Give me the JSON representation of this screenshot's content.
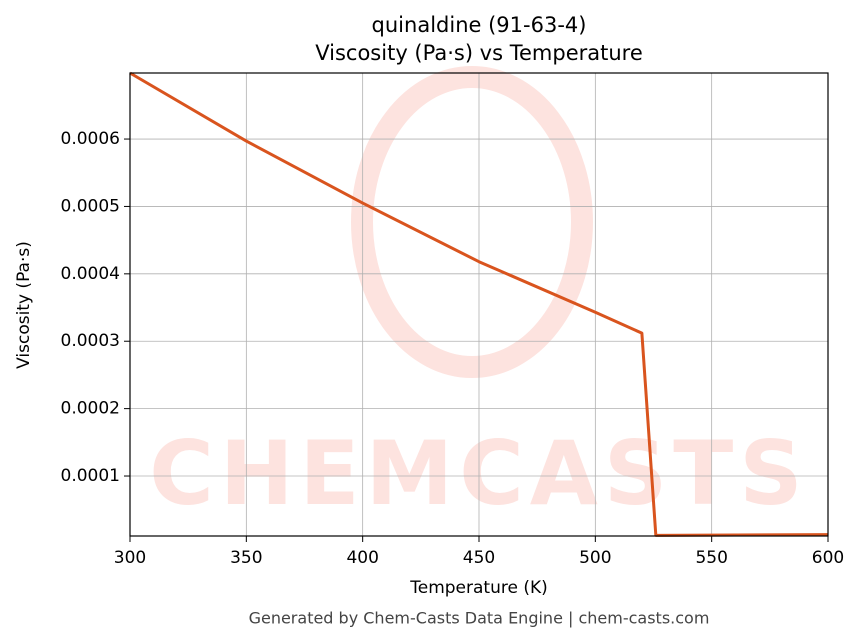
{
  "chart_data": {
    "type": "line",
    "title": "quinaldine (91-63-4)",
    "subtitle": "Viscosity (Pa·s) vs Temperature",
    "x_label": "Temperature (K)",
    "y_label": "Viscosity (Pa·s)",
    "footer": "Generated by Chem-Casts Data Engine | chem-casts.com",
    "watermark": "CHEMCASTS",
    "x": [
      300,
      350,
      400,
      450,
      500,
      520,
      526,
      600
    ],
    "series": [
      {
        "name": "Viscosity",
        "color": "#d9541e",
        "values": [
          0.000698,
          0.000597,
          0.000505,
          0.000418,
          0.000343,
          0.000312,
          1.2e-05,
          1.3e-05
        ]
      }
    ],
    "xlim": [
      300,
      600
    ],
    "xticks": [
      300,
      350,
      400,
      450,
      500,
      550,
      600
    ],
    "ylim": [
      1.1e-05,
      0.000698
    ],
    "yticks": [
      0.0001,
      0.0002,
      0.0003,
      0.0004,
      0.0005,
      0.0006
    ],
    "grid": true
  }
}
